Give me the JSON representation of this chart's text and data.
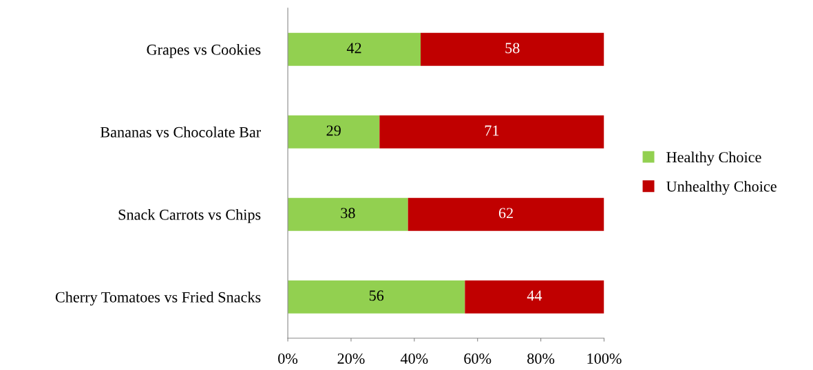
{
  "chart_data": {
    "type": "bar",
    "orientation": "horizontal",
    "stacked": true,
    "categories": [
      "Grapes vs Cookies",
      "Bananas vs Chocolate Bar",
      "Snack Carrots vs Chips",
      "Cherry Tomatoes vs Fried Snacks"
    ],
    "series": [
      {
        "name": "Healthy Choice",
        "color": "#92d050",
        "values": [
          42,
          29,
          38,
          56
        ]
      },
      {
        "name": "Unhealthy Choice",
        "color": "#c00000",
        "values": [
          58,
          71,
          62,
          44
        ]
      }
    ],
    "xlim": [
      0,
      100
    ],
    "xticks": [
      {
        "value": 0,
        "label": "0%"
      },
      {
        "value": 20,
        "label": "20%"
      },
      {
        "value": 40,
        "label": "40%"
      },
      {
        "value": 60,
        "label": "60%"
      },
      {
        "value": 80,
        "label": "80%"
      },
      {
        "value": 100,
        "label": "100%"
      }
    ],
    "data_labels": true,
    "legend": "right",
    "grid": false
  }
}
